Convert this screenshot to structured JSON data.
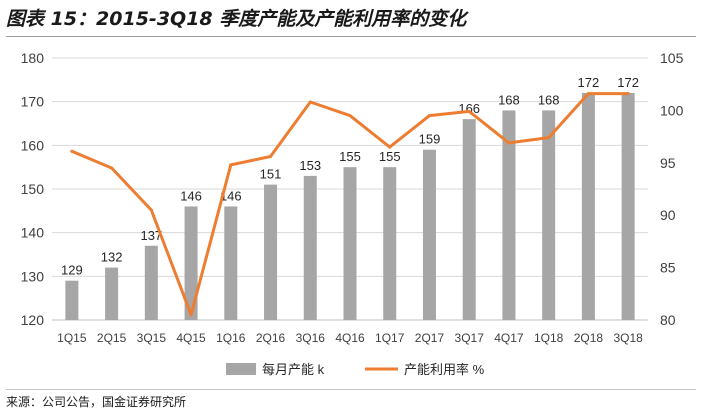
{
  "title": "图表 15：2015-3Q18 季度产能及产能利用率的变化",
  "source": "来源：公司公告，国金证券研究所",
  "chart_data": {
    "type": "bar+line",
    "categories": [
      "1Q15",
      "2Q15",
      "3Q15",
      "4Q15",
      "1Q16",
      "2Q16",
      "3Q16",
      "4Q16",
      "1Q17",
      "2Q17",
      "3Q17",
      "4Q17",
      "1Q18",
      "2Q18",
      "3Q18"
    ],
    "series": [
      {
        "name": "每月产能 k",
        "type": "bar",
        "axis": "left",
        "color": "#a6a6a6",
        "values": [
          129,
          132,
          137,
          146,
          146,
          151,
          153,
          155,
          155,
          159,
          166,
          168,
          168,
          172,
          172
        ],
        "labels": [
          "129",
          "132",
          "137",
          "146",
          "146",
          "151",
          "153",
          "155",
          "155",
          "159",
          "166",
          "168",
          "168",
          "172",
          "172"
        ]
      },
      {
        "name": "产能利用率 %",
        "type": "line",
        "axis": "right",
        "color": "#ed7d31",
        "values": [
          96.1,
          94.5,
          90.5,
          80.5,
          94.8,
          95.6,
          100.8,
          99.5,
          96.5,
          99.5,
          99.9,
          96.9,
          97.4,
          101.6,
          101.6
        ]
      }
    ],
    "y_left": {
      "min": 120,
      "max": 180,
      "step": 10,
      "ticks": [
        "120",
        "130",
        "140",
        "150",
        "160",
        "170",
        "180"
      ]
    },
    "y_right": {
      "min": 80,
      "max": 105,
      "step": 5,
      "ticks": [
        "80",
        "85",
        "90",
        "95",
        "100",
        "105"
      ]
    },
    "grid": true,
    "legend_position": "bottom"
  }
}
